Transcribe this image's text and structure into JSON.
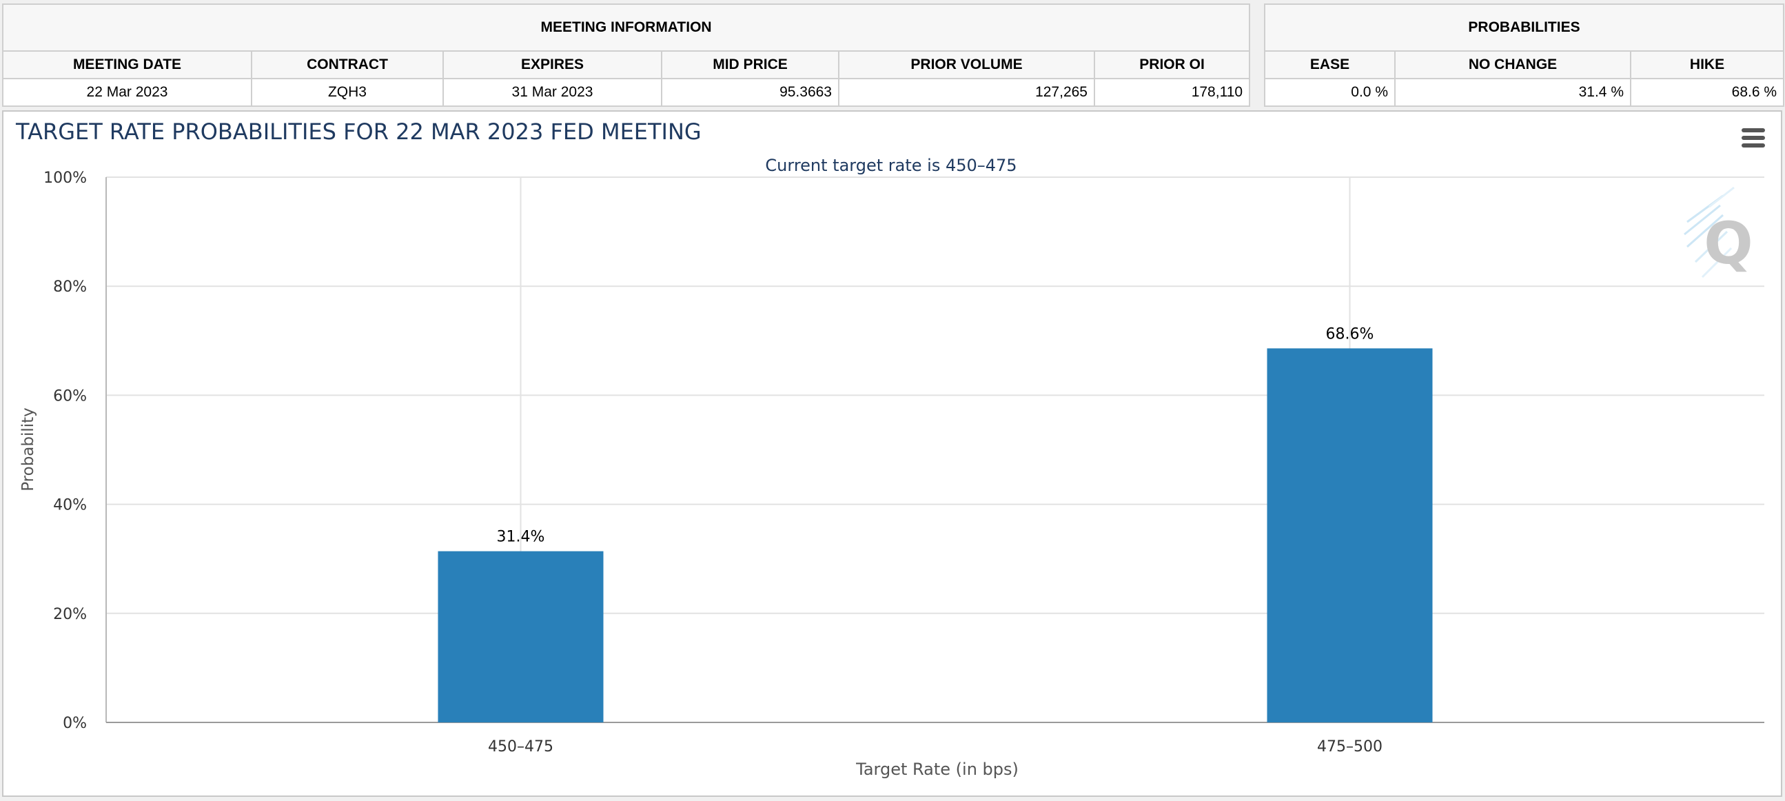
{
  "meeting_table": {
    "header": "MEETING INFORMATION",
    "columns": [
      "MEETING DATE",
      "CONTRACT",
      "EXPIRES",
      "MID PRICE",
      "PRIOR VOLUME",
      "PRIOR OI"
    ],
    "row": [
      "22 Mar 2023",
      "ZQH3",
      "31 Mar 2023",
      "95.3663",
      "127,265",
      "178,110"
    ]
  },
  "prob_table": {
    "header": "PROBABILITIES",
    "columns": [
      "EASE",
      "NO CHANGE",
      "HIKE"
    ],
    "row": [
      "0.0 %",
      "31.4 %",
      "68.6 %"
    ]
  },
  "chart_data": {
    "type": "bar",
    "title": "TARGET RATE PROBABILITIES FOR 22 MAR 2023 FED MEETING",
    "subtitle": "Current target rate is 450–475",
    "xlabel": "Target Rate (in bps)",
    "ylabel": "Probability",
    "categories": [
      "450–475",
      "475–500"
    ],
    "values": [
      31.4,
      68.6
    ],
    "data_labels": [
      "31.4%",
      "68.6%"
    ],
    "ylim": [
      0,
      100
    ],
    "yticks": [
      0,
      20,
      40,
      60,
      80,
      100
    ],
    "ytick_labels": [
      "0%",
      "20%",
      "40%",
      "60%",
      "80%",
      "100%"
    ],
    "grid": true,
    "legend": "none",
    "bar_color": "#2980b9",
    "title_color": "#1f3a60"
  },
  "icons": {
    "menu": "hamburger-menu-icon",
    "watermark": "q-logo-watermark"
  }
}
